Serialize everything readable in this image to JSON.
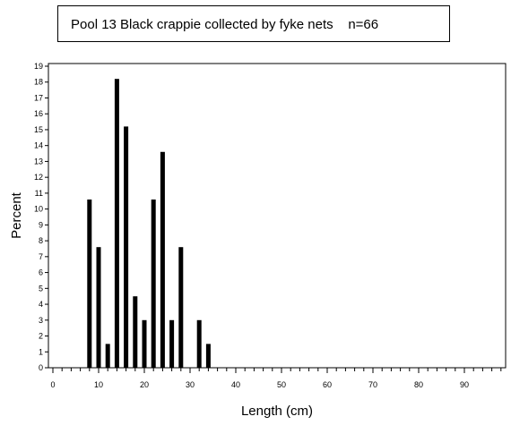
{
  "chart_data": {
    "type": "bar",
    "title": "Pool 13 Black crappie collected by fyke nets    n=66",
    "xlabel": "Length (cm)",
    "ylabel": "Percent",
    "xlim": [
      0,
      99
    ],
    "ylim": [
      0,
      19
    ],
    "x_major_ticks": [
      0,
      10,
      20,
      30,
      40,
      50,
      60,
      70,
      80,
      90
    ],
    "y_ticks": [
      0,
      1,
      2,
      3,
      4,
      5,
      6,
      7,
      8,
      9,
      10,
      11,
      12,
      13,
      14,
      15,
      16,
      17,
      18,
      19
    ],
    "x": [
      8,
      10,
      12,
      14,
      16,
      18,
      20,
      22,
      24,
      26,
      28,
      32,
      34
    ],
    "values": [
      10.6,
      7.6,
      1.5,
      18.2,
      15.2,
      4.5,
      3.0,
      10.6,
      13.6,
      3.0,
      7.6,
      3.0,
      1.5
    ],
    "grid": false,
    "legend": "none"
  }
}
